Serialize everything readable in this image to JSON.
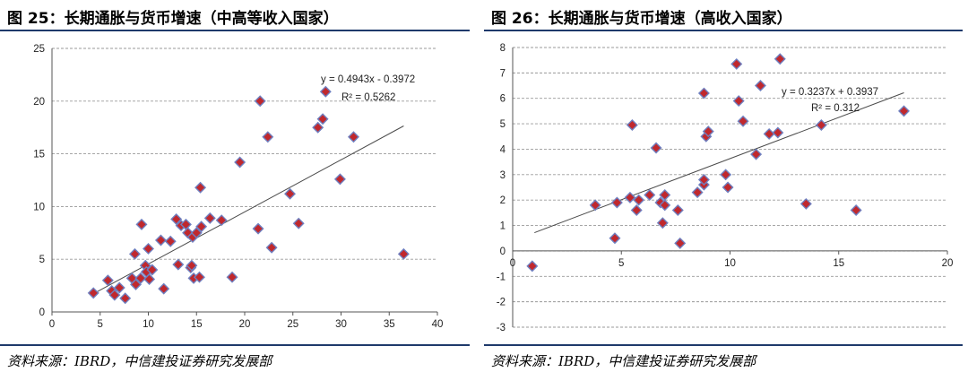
{
  "chart_data": [
    {
      "type": "scatter",
      "title": "图 25：长期通胀与货币增速（中高等收入国家）",
      "source": "资料来源：IBRD，中信建投证券研究发展部",
      "xlim": [
        0,
        40
      ],
      "ylim": [
        0,
        25
      ],
      "x_ticks": [
        "0",
        "5",
        "10",
        "15",
        "20",
        "25",
        "30",
        "35",
        "40"
      ],
      "y_ticks": [
        "0",
        "5",
        "10",
        "15",
        "20",
        "25"
      ],
      "grid": "horizontal dashed",
      "marker_color": "#c0282d",
      "marker_edge_color": "#6f7fbf",
      "trendline": {
        "slope": 0.4943,
        "intercept": -0.3972,
        "x_range": [
          4.3,
          36.5
        ]
      },
      "equation": "y = 0.4943x - 0.3972",
      "r_squared": "R² = 0.5262",
      "points": [
        [
          4.3,
          1.8
        ],
        [
          5.8,
          3.0
        ],
        [
          6.2,
          2.0
        ],
        [
          6.5,
          1.6
        ],
        [
          7.0,
          2.3
        ],
        [
          7.6,
          1.3
        ],
        [
          8.3,
          3.2
        ],
        [
          8.6,
          5.5
        ],
        [
          8.7,
          2.6
        ],
        [
          9.2,
          3.2
        ],
        [
          9.3,
          8.3
        ],
        [
          9.7,
          4.4
        ],
        [
          9.8,
          3.8
        ],
        [
          10.0,
          6.0
        ],
        [
          10.1,
          3.1
        ],
        [
          10.4,
          4.0
        ],
        [
          11.3,
          6.8
        ],
        [
          11.6,
          2.2
        ],
        [
          12.3,
          6.7
        ],
        [
          12.9,
          8.8
        ],
        [
          13.1,
          4.5
        ],
        [
          13.4,
          8.2
        ],
        [
          13.9,
          8.3
        ],
        [
          14.1,
          7.5
        ],
        [
          14.4,
          4.2
        ],
        [
          14.5,
          4.4
        ],
        [
          14.6,
          7.1
        ],
        [
          14.7,
          3.2
        ],
        [
          15.0,
          7.5
        ],
        [
          15.3,
          3.3
        ],
        [
          15.4,
          11.8
        ],
        [
          15.5,
          8.1
        ],
        [
          16.4,
          8.9
        ],
        [
          17.6,
          8.7
        ],
        [
          18.7,
          3.3
        ],
        [
          19.5,
          14.2
        ],
        [
          21.4,
          7.9
        ],
        [
          21.6,
          20.0
        ],
        [
          22.4,
          16.6
        ],
        [
          22.8,
          6.1
        ],
        [
          24.7,
          11.2
        ],
        [
          25.6,
          8.4
        ],
        [
          27.6,
          17.5
        ],
        [
          28.1,
          18.3
        ],
        [
          28.4,
          20.9
        ],
        [
          29.9,
          12.6
        ],
        [
          31.3,
          16.6
        ],
        [
          36.5,
          5.5
        ]
      ]
    },
    {
      "type": "scatter",
      "title": "图 26：长期通胀与货币增速（高收入国家）",
      "source": "资料来源：IBRD，中信建投证券研究发展部",
      "xlim": [
        0,
        20
      ],
      "ylim": [
        -3,
        8
      ],
      "x_ticks": [
        "0",
        "5",
        "10",
        "15",
        "20"
      ],
      "y_ticks": [
        "-3",
        "-2",
        "-1",
        "0",
        "1",
        "2",
        "3",
        "4",
        "5",
        "6",
        "7",
        "8"
      ],
      "grid": "horizontal dashed",
      "marker_color": "#c0282d",
      "marker_edge_color": "#6f7fbf",
      "trendline": {
        "slope": 0.3237,
        "intercept": 0.3937,
        "x_range": [
          1.0,
          18.0
        ]
      },
      "equation": "y = 0.3237x + 0.3937",
      "r_squared": "R² = 0.312",
      "points": [
        [
          0.9,
          -0.6
        ],
        [
          3.8,
          1.8
        ],
        [
          4.7,
          0.5
        ],
        [
          4.8,
          1.9
        ],
        [
          5.4,
          2.1
        ],
        [
          5.5,
          4.95
        ],
        [
          5.7,
          1.6
        ],
        [
          5.8,
          2.0
        ],
        [
          6.3,
          2.2
        ],
        [
          6.6,
          4.05
        ],
        [
          6.8,
          1.9
        ],
        [
          6.9,
          1.1
        ],
        [
          7.0,
          2.2
        ],
        [
          7.0,
          1.8
        ],
        [
          7.6,
          1.6
        ],
        [
          7.7,
          0.3
        ],
        [
          8.5,
          2.3
        ],
        [
          8.8,
          2.6
        ],
        [
          8.8,
          2.8
        ],
        [
          8.8,
          6.2
        ],
        [
          8.9,
          4.5
        ],
        [
          9.0,
          4.7
        ],
        [
          9.8,
          3.0
        ],
        [
          9.9,
          2.5
        ],
        [
          10.3,
          7.35
        ],
        [
          10.4,
          5.9
        ],
        [
          10.6,
          5.1
        ],
        [
          11.2,
          3.8
        ],
        [
          11.4,
          6.5
        ],
        [
          11.8,
          4.6
        ],
        [
          12.2,
          4.65
        ],
        [
          12.3,
          7.55
        ],
        [
          13.5,
          1.85
        ],
        [
          14.2,
          4.95
        ],
        [
          15.8,
          1.6
        ],
        [
          18.0,
          5.5
        ]
      ]
    }
  ]
}
